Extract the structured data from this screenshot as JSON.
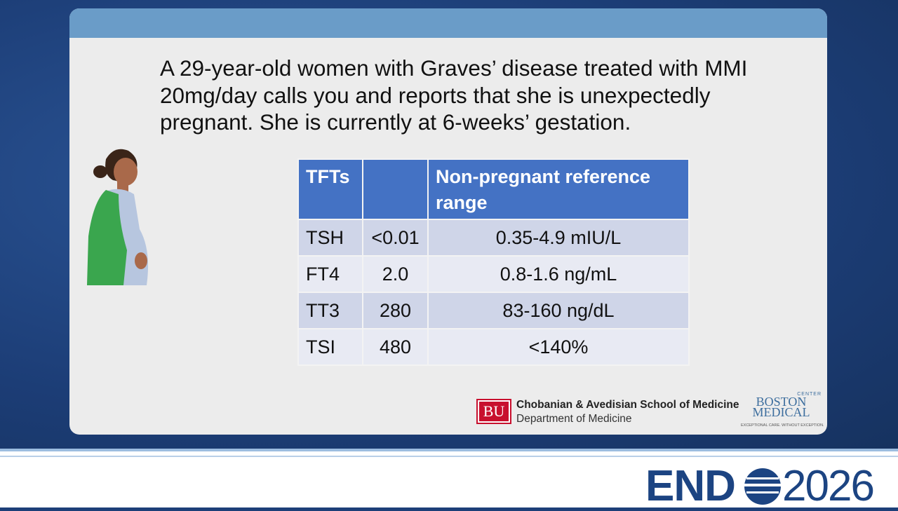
{
  "slide": {
    "question": "A 29-year-old women with Graves’ disease treated with MMI 20mg/day calls you and reports that she is unexpectedly pregnant.  She is currently at 6-weeks’ gestation.",
    "table": {
      "header": [
        "TFTs",
        "",
        "Non-pregnant reference range"
      ],
      "rows": [
        [
          "TSH",
          "<0.01",
          "0.35-4.9 mIU/L"
        ],
        [
          "FT4",
          "2.0",
          "0.8-1.6 ng/mL"
        ],
        [
          "TT3",
          "280",
          "83-160 ng/dL"
        ],
        [
          "TSI",
          "480",
          "<140%"
        ]
      ]
    },
    "bu_logo": {
      "mark": "BU",
      "school": "Chobanian & Avedisian School of Medicine",
      "department": "Department of Medicine"
    },
    "bmc_logo": {
      "name": "BOSTON MEDICAL",
      "center": "CENTER",
      "tagline": "EXCEPTIONAL CARE. WITHOUT EXCEPTION."
    },
    "footer": {
      "brand": "END",
      "year": "2026"
    }
  }
}
